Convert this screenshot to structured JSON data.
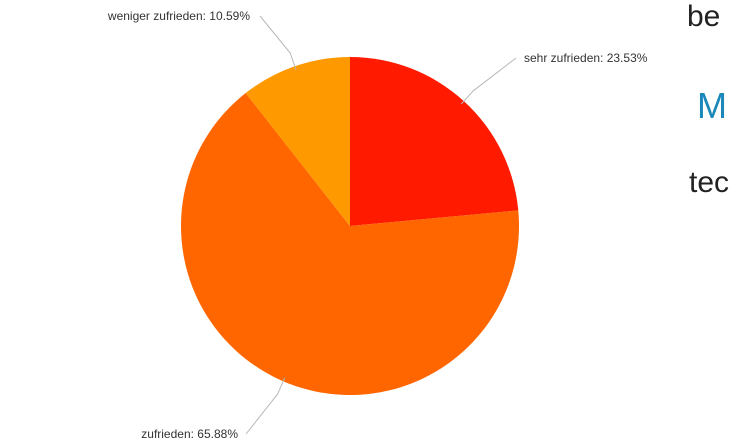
{
  "chart_data": {
    "type": "pie",
    "title": "",
    "slices": [
      {
        "label": "sehr zufrieden",
        "value": 23.53,
        "display": "sehr zufrieden: 23.53%",
        "color": "#ff1a00"
      },
      {
        "label": "zufrieden",
        "value": 65.88,
        "display": "zufrieden: 65.88%",
        "color": "#ff6600"
      },
      {
        "label": "weniger zufrieden",
        "value": 10.59,
        "display": "weniger zufrieden: 10.59%",
        "color": "#ff9900"
      }
    ],
    "start_angle_deg": 0,
    "direction": "clockwise"
  },
  "side_text": {
    "line1": "be",
    "line2": "M",
    "line3": "tec",
    "line2_color": "#1a88b8"
  }
}
